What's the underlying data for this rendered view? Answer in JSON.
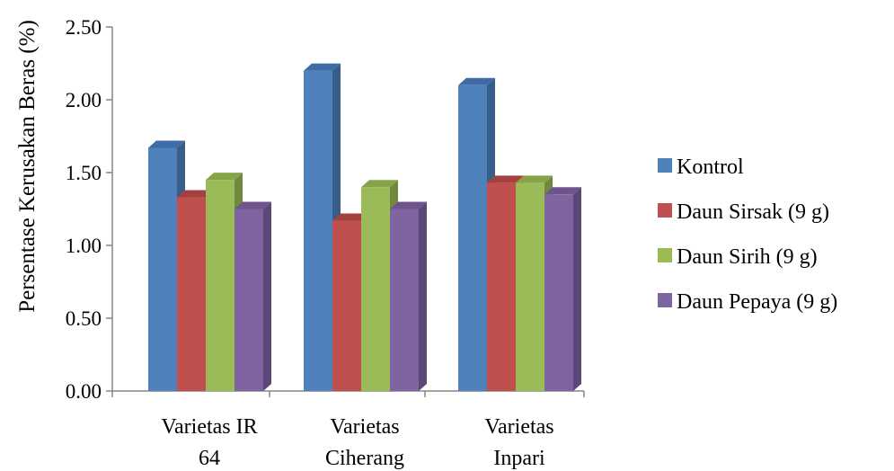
{
  "chart_data": {
    "type": "bar",
    "style": "3d-clustered-column",
    "title": "",
    "xlabel": "",
    "ylabel": "Persentase Kerusakan Beras (%)",
    "ylim": [
      0,
      2.5
    ],
    "yticks": [
      "0.00",
      "0.50",
      "1.00",
      "1.50",
      "2.00",
      "2.50"
    ],
    "categories": [
      [
        "Varietas IR",
        "64"
      ],
      [
        "Varietas",
        "Ciherang"
      ],
      [
        "Varietas",
        "Inpari"
      ]
    ],
    "series": [
      {
        "name": "Kontrol",
        "values": [
          1.67,
          2.2,
          2.1
        ],
        "color": "#4F81BD",
        "side": "#385D8A",
        "top": "#3F6BA6"
      },
      {
        "name": "Daun Sirsak (9 g)",
        "values": [
          1.33,
          1.17,
          1.43
        ],
        "color": "#C0504D",
        "side": "#8C3836",
        "top": "#A4413F"
      },
      {
        "name": "Daun Sirih (9 g)",
        "values": [
          1.45,
          1.4,
          1.43
        ],
        "color": "#9BBB59",
        "side": "#71893F",
        "top": "#86A348"
      },
      {
        "name": "Daun Pepaya (9 g)",
        "values": [
          1.25,
          1.25,
          1.35
        ],
        "color": "#8064A2",
        "side": "#5C4876",
        "top": "#6D548D"
      }
    ],
    "grid": false,
    "legend": "right"
  }
}
